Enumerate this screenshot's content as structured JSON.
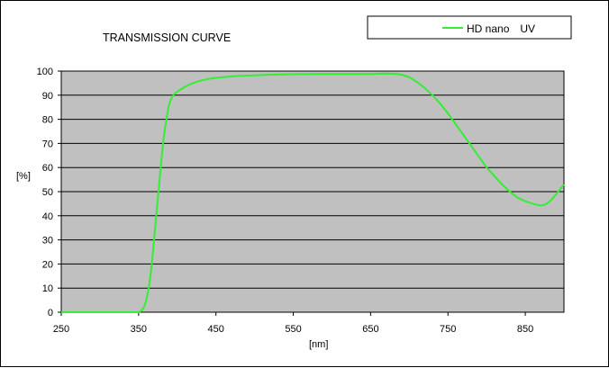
{
  "chart_data": {
    "type": "line",
    "title": "TRANSMISSION CURVE",
    "xlabel": "[nm]",
    "ylabel": "[%]",
    "xlim": [
      250,
      900
    ],
    "ylim": [
      0,
      100
    ],
    "x_ticks": [
      250,
      350,
      450,
      550,
      650,
      750,
      850
    ],
    "y_ticks": [
      0,
      10,
      20,
      30,
      40,
      50,
      60,
      70,
      80,
      90,
      100
    ],
    "grid": "horizontal",
    "plot_background": "#c0c0c0",
    "legend_position": "top-right",
    "series": [
      {
        "name": "HD nano　UV",
        "color": "#33ee33",
        "x": [
          250,
          300,
          350,
          353,
          356,
          358,
          360,
          362,
          364,
          366,
          368,
          370,
          372,
          374,
          376,
          378,
          380,
          382,
          384,
          386,
          388,
          390,
          393,
          396,
          400,
          405,
          410,
          420,
          430,
          440,
          450,
          460,
          470,
          480,
          500,
          520,
          550,
          580,
          600,
          620,
          650,
          660,
          670,
          680,
          690,
          700,
          710,
          720,
          730,
          740,
          750,
          760,
          770,
          780,
          790,
          800,
          810,
          820,
          830,
          840,
          850,
          860,
          865,
          870,
          875,
          880,
          885,
          890,
          895,
          900
        ],
        "y": [
          0,
          0,
          0,
          0.5,
          1.5,
          3,
          5,
          8,
          12,
          17,
          23,
          30,
          37,
          44,
          51,
          58,
          65,
          71,
          76,
          80,
          84,
          87,
          89,
          90.5,
          91.5,
          92.5,
          93.5,
          95,
          96,
          96.7,
          97.2,
          97.5,
          97.8,
          98,
          98.2,
          98.5,
          98.7,
          98.8,
          98.8,
          98.8,
          98.8,
          98.9,
          99,
          98.9,
          98.5,
          97.5,
          95.5,
          93,
          90,
          86.5,
          82.5,
          78,
          73.5,
          69,
          64.5,
          60,
          56.5,
          53,
          50,
          47.5,
          46,
          45,
          44.5,
          44.3,
          44.5,
          45.5,
          47,
          49,
          51,
          53
        ]
      }
    ]
  }
}
